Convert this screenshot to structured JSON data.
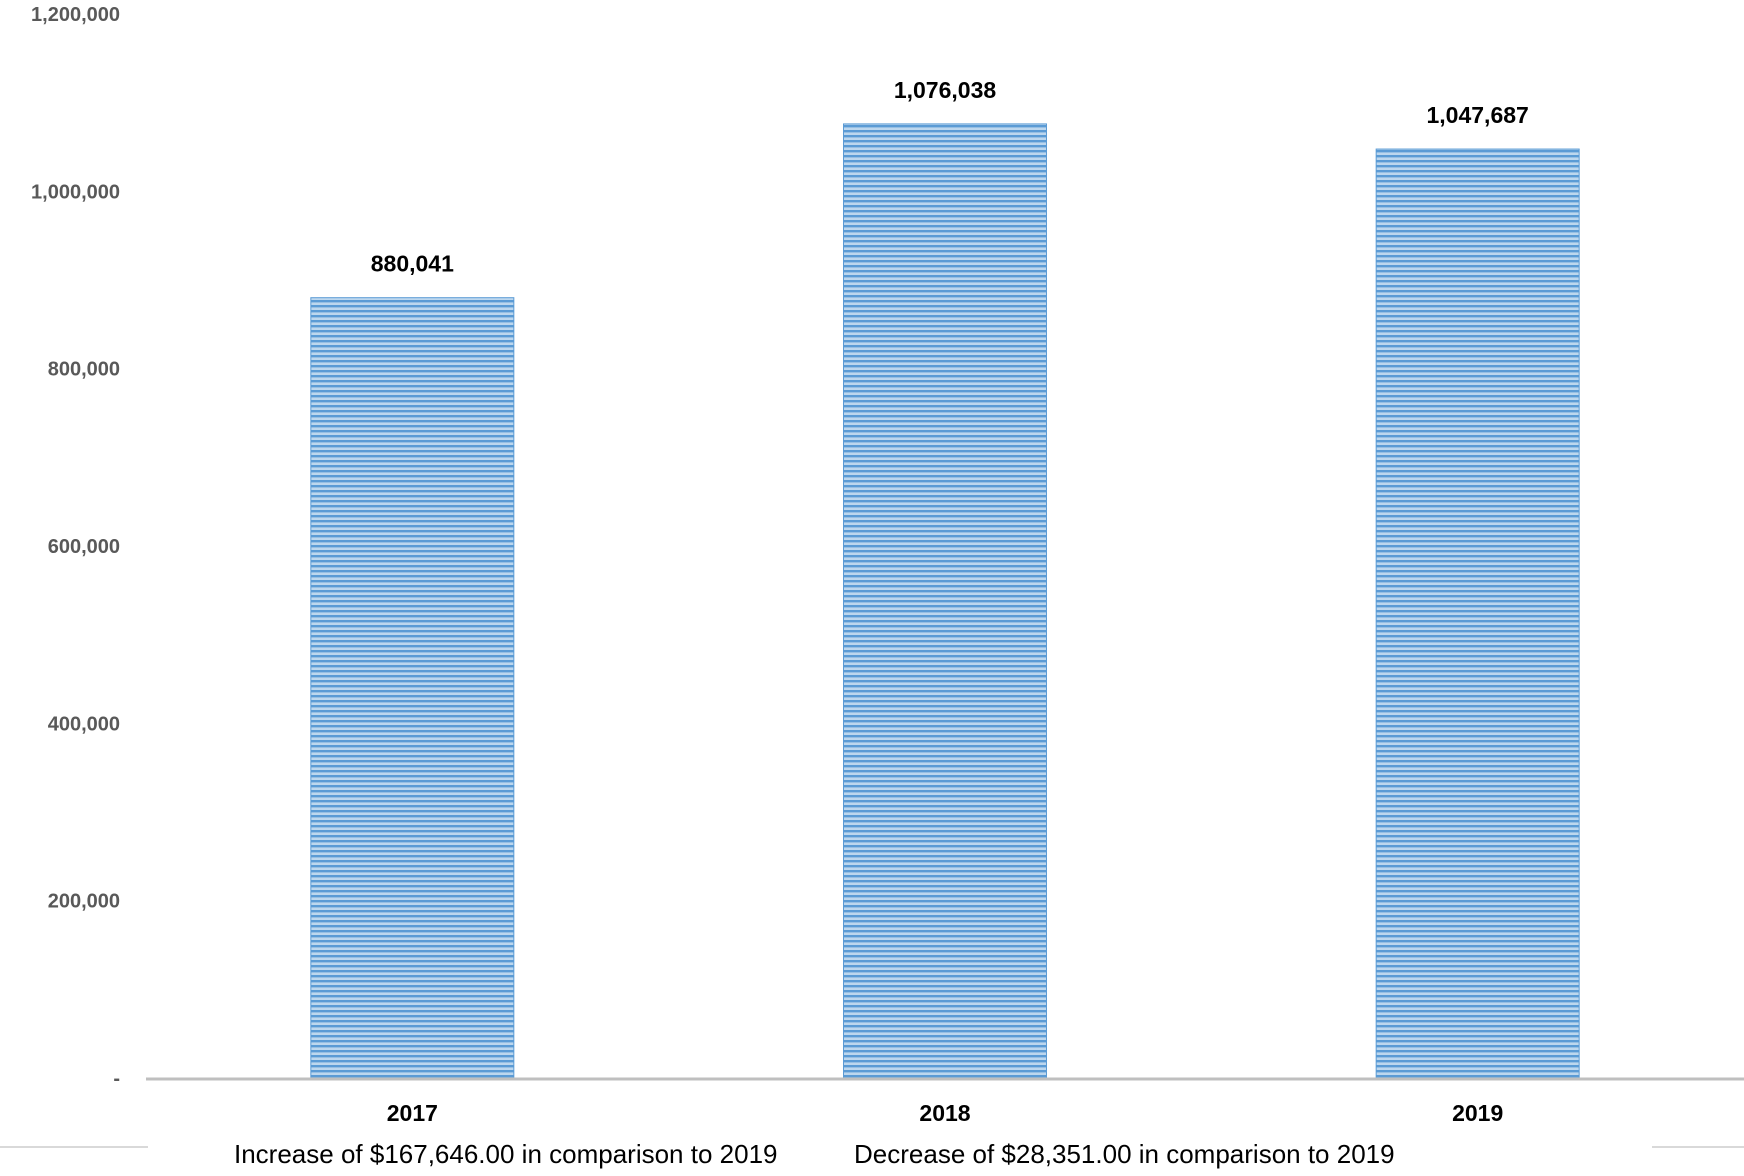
{
  "chart_data": {
    "type": "bar",
    "categories": [
      "2017",
      "2018",
      "2019"
    ],
    "values": [
      880041,
      1076038,
      1047687
    ],
    "data_labels": [
      "880,041",
      "1,076,038",
      "1,047,687"
    ],
    "title": "",
    "xlabel": "",
    "ylabel": "",
    "ylim": [
      0,
      1200000
    ],
    "y_ticks": [
      0,
      200000,
      400000,
      600000,
      800000,
      1000000,
      1200000
    ],
    "y_tick_labels": [
      "-",
      "200,000",
      "400,000",
      "600,000",
      "800,000",
      "1,000,000",
      "1,200,000"
    ],
    "grid": false,
    "legend": "none",
    "bar_color": "#5b9bd5",
    "bar_stripe_color": "#bdd7ee",
    "axis_color": "#bfbfbf",
    "annotations": [
      "Increase of $167,646.00  in comparison to 2019",
      "Decrease of $28,351.00 in comparison to 2019"
    ]
  }
}
